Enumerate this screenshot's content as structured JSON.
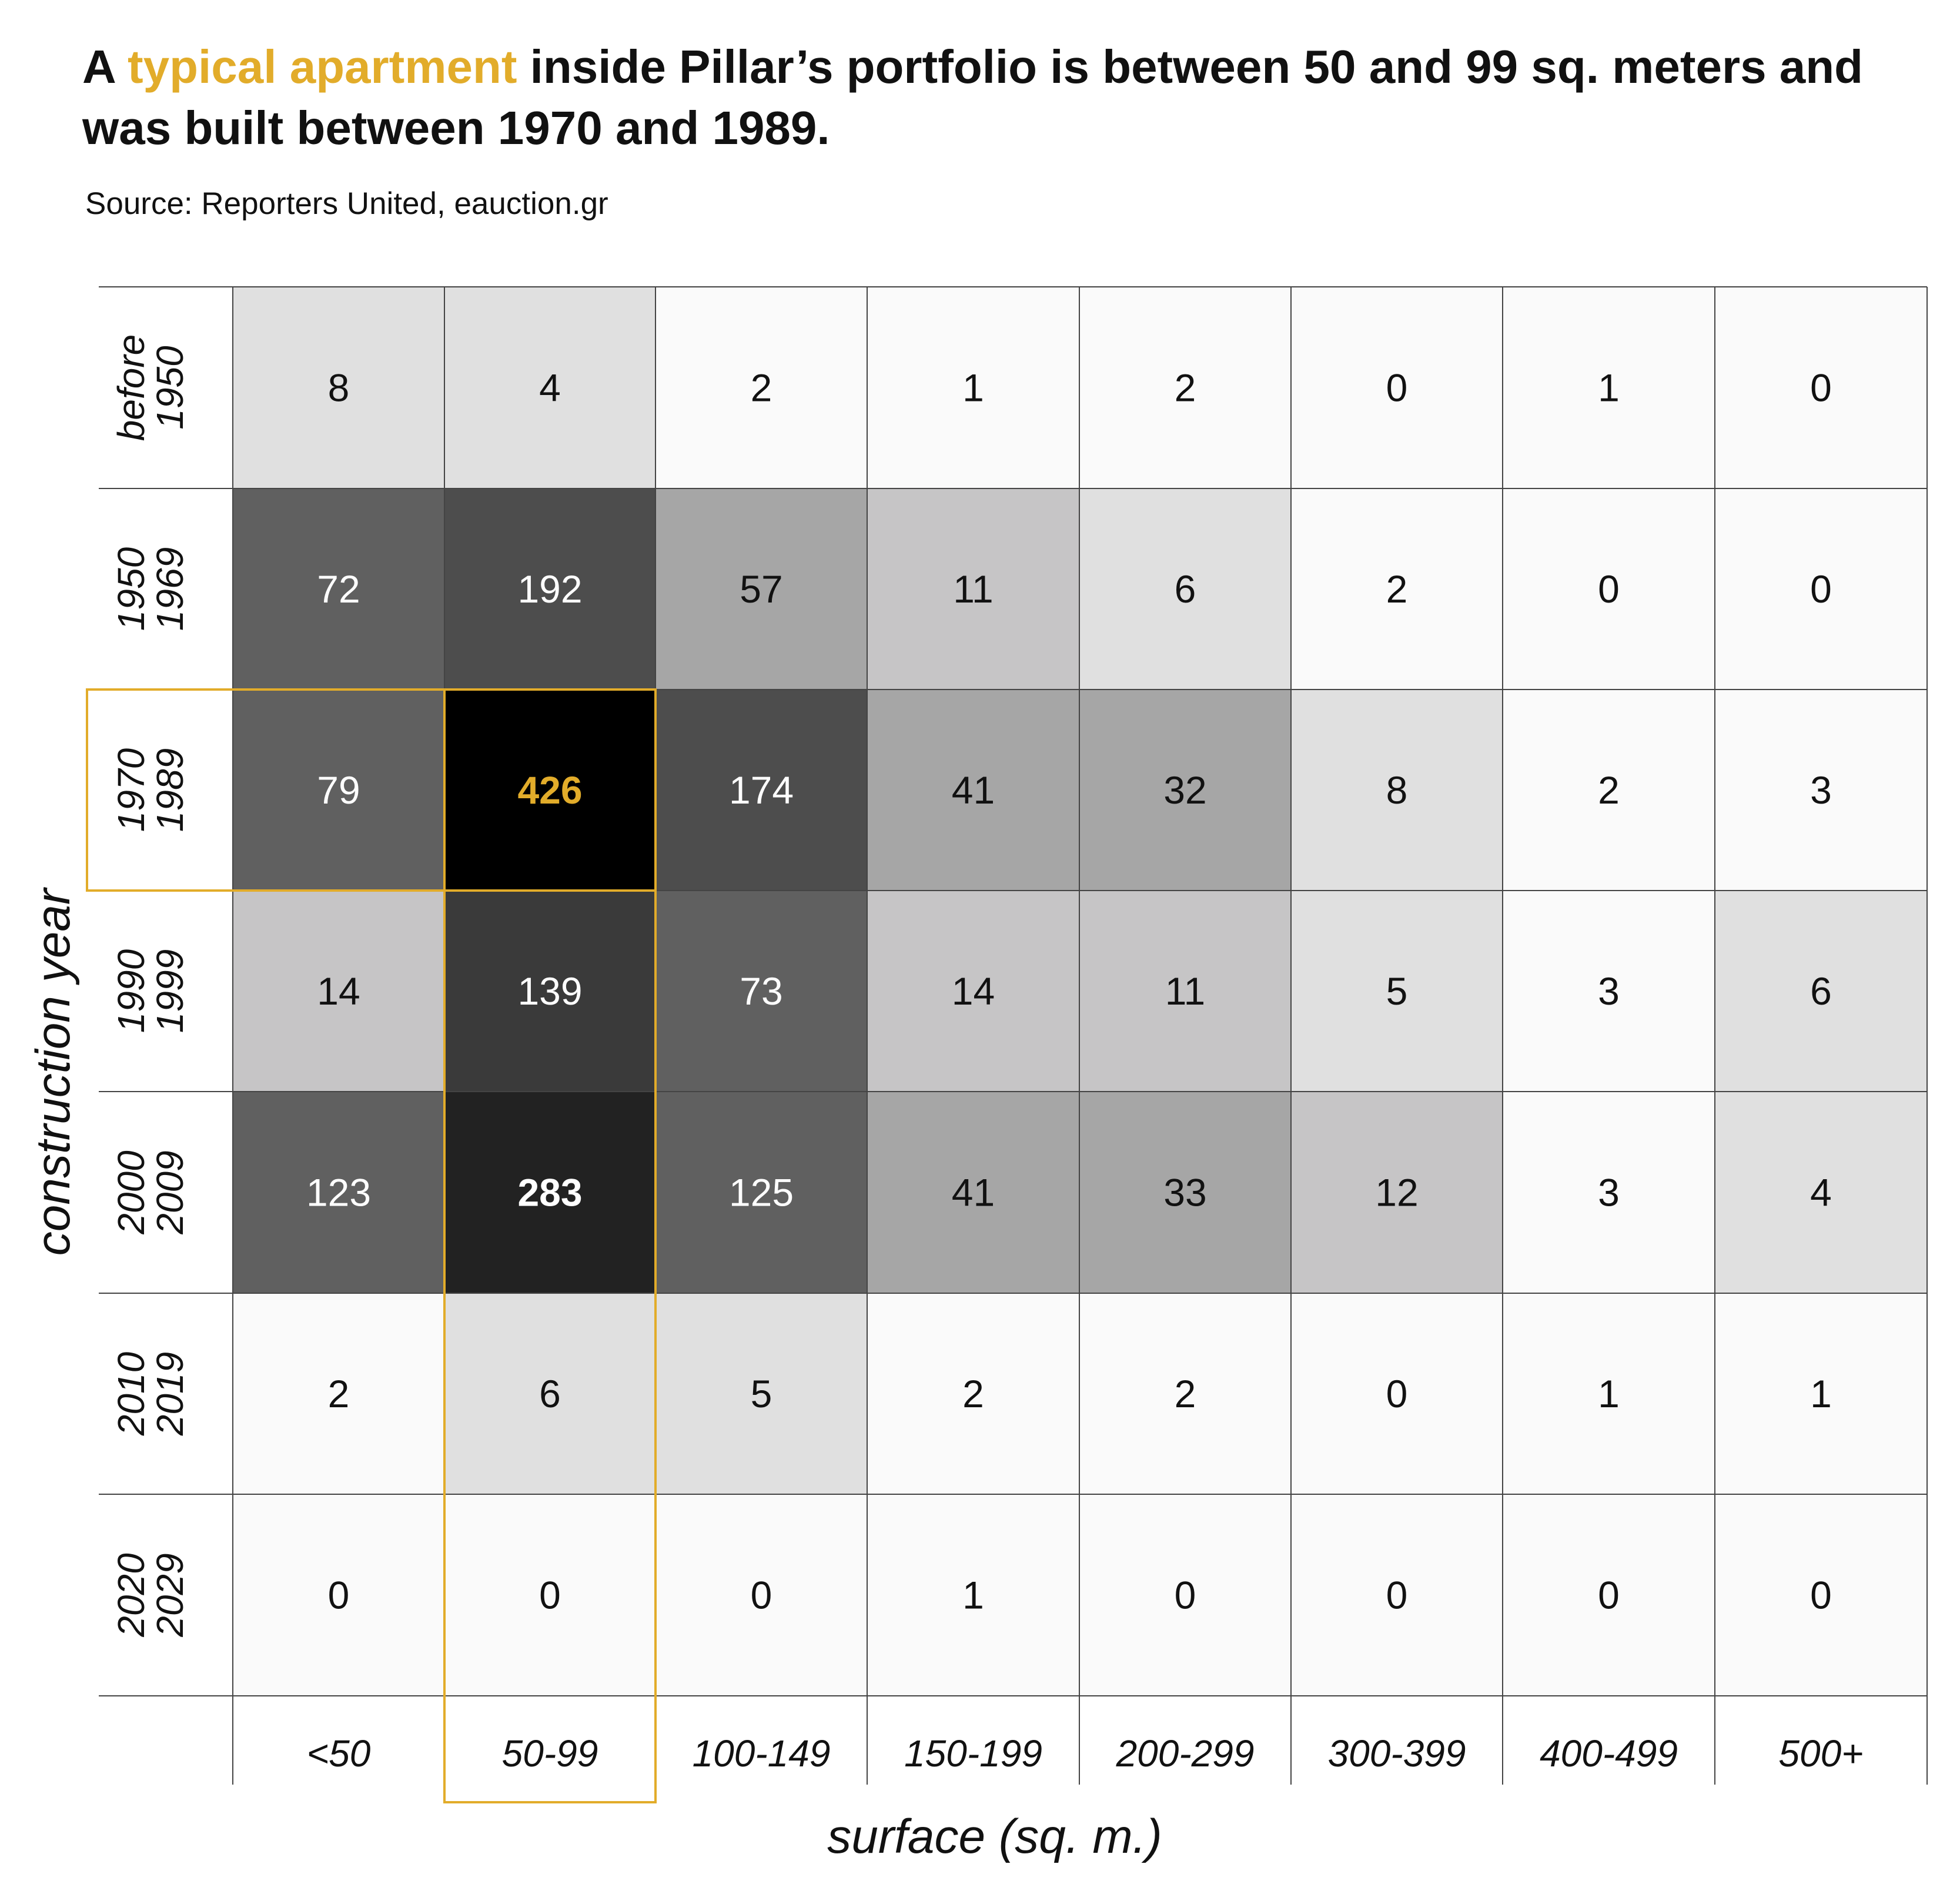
{
  "title": {
    "part1": "A ",
    "highlight": "typical apartment",
    "part2": " inside Pillar’s portfolio is between 50 and 99 sq. meters and was built between 1970 and 1989."
  },
  "source": "Source: Reporters United, eauction.gr",
  "colors": {
    "highlight": "#e2ac2a",
    "grid_line": "#444444",
    "scale": [
      "#fafafa",
      "#e0e0e0",
      "#c6c5c6",
      "#a6a6a6",
      "#606060",
      "#4d4d4d",
      "#3a3a3a",
      "#222222",
      "#000000"
    ]
  },
  "chart_data": {
    "type": "heatmap",
    "xlabel": "surface (sq. m.)",
    "ylabel": "construction year",
    "x_categories": [
      "<50",
      "50-99",
      "100-149",
      "150-199",
      "200-299",
      "300-399",
      "400-499",
      "500+"
    ],
    "y_categories": [
      [
        "before",
        "1950"
      ],
      [
        "1950",
        "1969"
      ],
      [
        "1970",
        "1989"
      ],
      [
        "1990",
        "1999"
      ],
      [
        "2000",
        "2009"
      ],
      [
        "2010",
        "2019"
      ],
      [
        "2020",
        "2029"
      ]
    ],
    "values": [
      [
        8,
        4,
        2,
        1,
        2,
        0,
        1,
        0
      ],
      [
        72,
        192,
        57,
        11,
        6,
        2,
        0,
        0
      ],
      [
        79,
        426,
        174,
        41,
        32,
        8,
        2,
        3
      ],
      [
        14,
        139,
        73,
        14,
        11,
        5,
        3,
        6
      ],
      [
        123,
        283,
        125,
        41,
        33,
        12,
        3,
        4
      ],
      [
        2,
        6,
        5,
        2,
        2,
        0,
        1,
        1
      ],
      [
        0,
        0,
        0,
        1,
        0,
        0,
        0,
        0
      ]
    ],
    "highlighted_row": "1970 1989",
    "highlighted_column": "50-99",
    "highlighted_cell": {
      "row": "1970 1989",
      "column": "50-99",
      "value": 426
    },
    "bold_values": [
      426,
      283
    ]
  }
}
